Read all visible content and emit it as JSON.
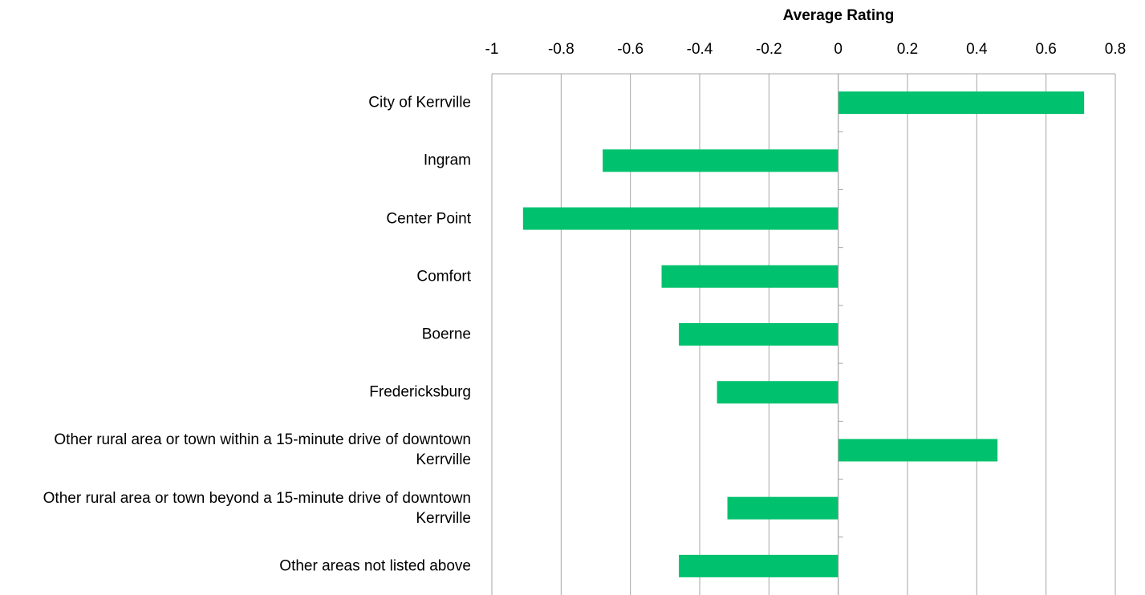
{
  "chart_data": {
    "type": "bar",
    "orientation": "horizontal",
    "x_label": "Average Rating",
    "categories": [
      "City of Kerrville",
      "Ingram",
      "Center Point",
      "Comfort",
      "Boerne",
      "Fredericksburg",
      "Other rural area or town within a 15-minute drive of downtown Kerrville",
      "Other rural area or town beyond a 15-minute drive of downtown Kerrville",
      "Other areas not listed above"
    ],
    "values": [
      0.71,
      -0.68,
      -0.91,
      -0.51,
      -0.46,
      -0.35,
      0.46,
      -0.32,
      -0.46
    ],
    "color": "#00c16e",
    "xlim": [
      -1,
      0.8
    ],
    "xticks": [
      -1,
      -0.8,
      -0.6,
      -0.4,
      -0.2,
      0,
      0.2,
      0.4,
      0.6,
      0.8
    ],
    "grid": true
  }
}
